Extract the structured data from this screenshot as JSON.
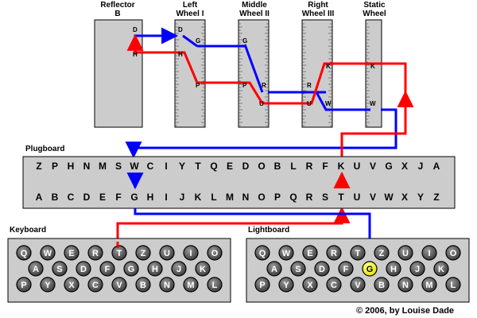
{
  "title": "",
  "colors": {
    "forward_path": "#0000ff",
    "return_path": "#ff0000",
    "component_fill": "#cccccc",
    "lit_lamp": "#ffff33",
    "unlit_lamp": "#7a7a7a",
    "key_cap": "#5e5e5e"
  },
  "rotors": [
    {
      "id": "reflector",
      "label1": "Reflector",
      "label2": "B",
      "pins": [
        "D",
        "H"
      ]
    },
    {
      "id": "left-wheel",
      "label1": "Left",
      "label2": "Wheel I",
      "pins": [
        "D",
        "G",
        "H",
        "P"
      ]
    },
    {
      "id": "middle-wheel",
      "label1": "Middle",
      "label2": "Wheel II",
      "pins": [
        "G",
        "P",
        "R",
        "U"
      ]
    },
    {
      "id": "right-wheel",
      "label1": "Right",
      "label2": "Wheel III",
      "pins": [
        "K",
        "R",
        "U",
        "W"
      ]
    },
    {
      "id": "static-wheel",
      "label1": "Static",
      "label2": "Wheel",
      "pins": [
        "K",
        "W"
      ]
    }
  ],
  "plugboard": {
    "label": "Plugboard",
    "top_row": [
      "Z",
      "P",
      "H",
      "N",
      "M",
      "S",
      "W",
      "C",
      "I",
      "Y",
      "T",
      "Q",
      "E",
      "D",
      "O",
      "B",
      "L",
      "R",
      "F",
      "K",
      "U",
      "V",
      "G",
      "X",
      "J",
      "A"
    ],
    "bottom_row": [
      "A",
      "B",
      "C",
      "D",
      "E",
      "F",
      "G",
      "H",
      "I",
      "J",
      "K",
      "L",
      "M",
      "N",
      "O",
      "P",
      "Q",
      "R",
      "S",
      "T",
      "U",
      "V",
      "W",
      "X",
      "Y",
      "Z"
    ]
  },
  "keyboard": {
    "label": "Keyboard",
    "rows": [
      [
        "Q",
        "W",
        "E",
        "R",
        "T",
        "Z",
        "U",
        "I",
        "O"
      ],
      [
        "A",
        "S",
        "D",
        "F",
        "G",
        "H",
        "J",
        "K"
      ],
      [
        "P",
        "Y",
        "X",
        "C",
        "V",
        "B",
        "N",
        "M",
        "L"
      ]
    ],
    "pressed": "T"
  },
  "lightboard": {
    "label": "Lightboard",
    "rows": [
      [
        "Q",
        "W",
        "E",
        "R",
        "T",
        "Z",
        "U",
        "I",
        "O"
      ],
      [
        "A",
        "S",
        "D",
        "F",
        "G",
        "H",
        "J",
        "K"
      ],
      [
        "P",
        "Y",
        "X",
        "C",
        "V",
        "B",
        "N",
        "M",
        "L"
      ]
    ],
    "lit": "G"
  },
  "copyright": "© 2006, by Louise Dade"
}
